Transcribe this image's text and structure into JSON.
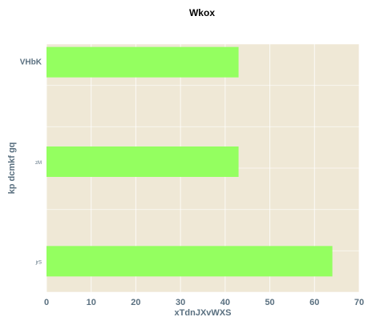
{
  "chart_data": {
    "type": "bar",
    "orientation": "horizontal",
    "title": "Wkox",
    "xlabel": "xTdnJXvWXS",
    "ylabel": "kp dcmkf gq",
    "categories": [
      "VHbK",
      "zM",
      "jrS"
    ],
    "values": [
      43,
      43,
      64
    ],
    "xlim": [
      0,
      70
    ],
    "xticks": [
      0,
      10,
      20,
      30,
      40,
      50,
      60,
      70
    ],
    "grid": true,
    "colors": {
      "bar": "#94ff60",
      "plot_background": "#efe8d6",
      "grid": "#ffffff",
      "axis_text": "#5a7080"
    }
  }
}
